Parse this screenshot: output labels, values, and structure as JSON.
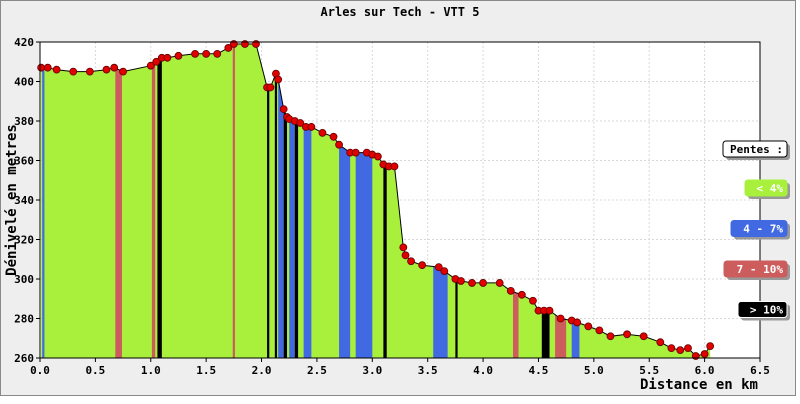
{
  "chart_data": {
    "type": "area",
    "title": "Arles sur Tech - VTT 5",
    "x_label": "Distance en km",
    "y_label": "Dénivelé en metres",
    "legend_title": "Pentes :",
    "x": [
      0.01,
      0.07,
      0.15,
      0.3,
      0.45,
      0.6,
      0.67,
      0.75,
      1.0,
      1.05,
      1.1,
      1.15,
      1.25,
      1.4,
      1.5,
      1.6,
      1.7,
      1.75,
      1.85,
      1.95,
      2.05,
      2.08,
      2.13,
      2.15,
      2.2,
      2.23,
      2.25,
      2.3,
      2.35,
      2.4,
      2.45,
      2.55,
      2.65,
      2.7,
      2.8,
      2.85,
      2.95,
      3.0,
      3.05,
      3.1,
      3.15,
      3.2,
      3.28,
      3.3,
      3.35,
      3.45,
      3.6,
      3.65,
      3.75,
      3.8,
      3.9,
      4.0,
      4.15,
      4.25,
      4.35,
      4.45,
      4.5,
      4.55,
      4.6,
      4.7,
      4.8,
      4.85,
      4.95,
      5.05,
      5.15,
      5.3,
      5.45,
      5.6,
      5.7,
      5.78,
      5.85,
      5.92,
      6.0,
      6.05
    ],
    "values": [
      407,
      407,
      406,
      405,
      405,
      406,
      407,
      405,
      408,
      410,
      412,
      412,
      413,
      414,
      414,
      414,
      417,
      419,
      419,
      419,
      397,
      397,
      404,
      401,
      386,
      382,
      381,
      380,
      379,
      377,
      377,
      374,
      372,
      368,
      364,
      364,
      364,
      363,
      362,
      358,
      357,
      357,
      316,
      312,
      309,
      307,
      306,
      304,
      300,
      299,
      298,
      298,
      298,
      294,
      292,
      289,
      284,
      284,
      284,
      280,
      279,
      278,
      276,
      274,
      271,
      272,
      271,
      268,
      265,
      264,
      265,
      261,
      262,
      266
    ],
    "line_color": "#000000",
    "marker_color": "#e00000",
    "slope_classes": [
      {
        "name": "< 4%",
        "color": "#a8f03c"
      },
      {
        "name": "4 - 7%",
        "color": "#4169e1"
      },
      {
        "name": "7 - 10%",
        "color": "#cd5c5c"
      },
      {
        "name": "> 10%",
        "color": "#000000"
      }
    ],
    "bands": [
      {
        "from": 0.02,
        "to": 0.04,
        "class": 1
      },
      {
        "from": 0.68,
        "to": 0.74,
        "class": 2
      },
      {
        "from": 1.01,
        "to": 1.04,
        "class": 2
      },
      {
        "from": 1.06,
        "to": 1.1,
        "class": 3
      },
      {
        "from": 1.74,
        "to": 1.76,
        "class": 2
      },
      {
        "from": 2.05,
        "to": 2.07,
        "class": 3
      },
      {
        "from": 2.12,
        "to": 2.14,
        "class": 3
      },
      {
        "from": 2.15,
        "to": 2.2,
        "class": 1
      },
      {
        "from": 2.2,
        "to": 2.23,
        "class": 3
      },
      {
        "from": 2.25,
        "to": 2.3,
        "class": 1
      },
      {
        "from": 2.3,
        "to": 2.33,
        "class": 3
      },
      {
        "from": 2.38,
        "to": 2.45,
        "class": 1
      },
      {
        "from": 2.7,
        "to": 2.8,
        "class": 1
      },
      {
        "from": 2.85,
        "to": 3.0,
        "class": 1
      },
      {
        "from": 3.1,
        "to": 3.13,
        "class": 3
      },
      {
        "from": 3.55,
        "to": 3.68,
        "class": 1
      },
      {
        "from": 3.75,
        "to": 3.77,
        "class": 3
      },
      {
        "from": 4.27,
        "to": 4.32,
        "class": 2
      },
      {
        "from": 4.53,
        "to": 4.6,
        "class": 3
      },
      {
        "from": 4.65,
        "to": 4.75,
        "class": 2
      },
      {
        "from": 4.8,
        "to": 4.87,
        "class": 1
      }
    ],
    "xlim": [
      0,
      6.5
    ],
    "ylim": [
      260,
      420
    ],
    "xticks": [
      {
        "value": 0,
        "label": "0.0"
      },
      0.5,
      {
        "value": 1,
        "label": "1.0"
      },
      1.5,
      {
        "value": 2,
        "label": "2.0"
      },
      2.5,
      {
        "value": 3,
        "label": "3.0"
      },
      3.5,
      {
        "value": 4,
        "label": "4.0"
      },
      4.5,
      {
        "value": 5,
        "label": "5.0"
      },
      5.5,
      {
        "value": 6,
        "label": "6.0"
      },
      6.5
    ],
    "yticks": [
      260,
      280,
      300,
      320,
      340,
      360,
      380,
      400,
      420
    ],
    "grid": true
  }
}
